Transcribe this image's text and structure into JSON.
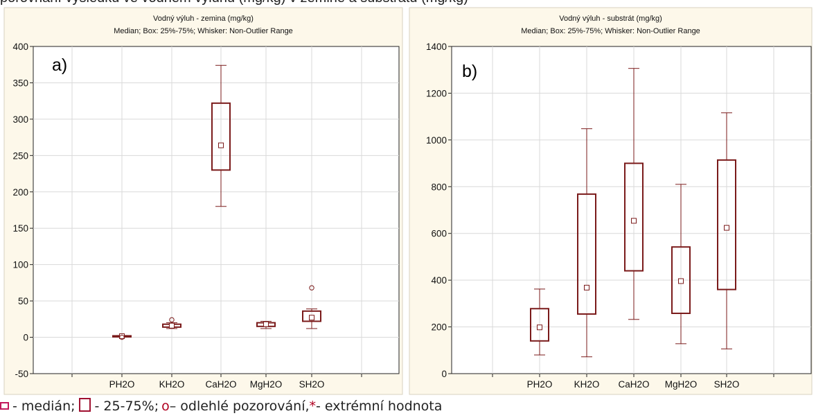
{
  "top_caption": "porovnání výsledků ve vodném výluhu (mg/kg) v zemině a substrátu (mg/kg)",
  "colors": {
    "panel_background": "#fdf8ea",
    "plot_background": "#ffffff",
    "box_stroke": "#7a1a1a",
    "grid": "#d9d9d9"
  },
  "chart_data": [
    {
      "type": "boxplot",
      "panel_label": "a)",
      "title": "Vodný výluh - zemina (mg/kg)",
      "subtitle": "Median; Box: 25%-75%; Whisker: Non-Outlier Range",
      "categories": [
        "PH2O",
        "KH2O",
        "CaH2O",
        "MgH2O",
        "SH2O"
      ],
      "ylim": [
        -50,
        400
      ],
      "yticks": [
        -50,
        0,
        50,
        100,
        150,
        200,
        250,
        300,
        350,
        400
      ],
      "grid": true,
      "boxes": [
        {
          "category": "PH2O",
          "whisker_low": 0.5,
          "q1": 1,
          "median": 1.5,
          "q3": 2,
          "whisker_high": 2.5,
          "outliers": [
            0
          ]
        },
        {
          "category": "KH2O",
          "whisker_low": 12,
          "q1": 14,
          "median": 16,
          "q3": 18,
          "whisker_high": 20,
          "outliers": [
            24
          ]
        },
        {
          "category": "CaH2O",
          "whisker_low": 180,
          "q1": 230,
          "median": 264,
          "q3": 322,
          "whisker_high": 374,
          "outliers": []
        },
        {
          "category": "MgH2O",
          "whisker_low": 12,
          "q1": 15,
          "median": 18,
          "q3": 20,
          "whisker_high": 22,
          "outliers": []
        },
        {
          "category": "SH2O",
          "whisker_low": 12,
          "q1": 22,
          "median": 27,
          "q3": 36,
          "whisker_high": 39,
          "outliers": [
            68
          ]
        }
      ]
    },
    {
      "type": "boxplot",
      "panel_label": "b)",
      "title": "Vodný výluh - substrát (mg/kg)",
      "subtitle": "Median; Box: 25%-75%; Whisker: Non-Outlier Range",
      "categories": [
        "PH2O",
        "KH2O",
        "CaH2O",
        "MgH2O",
        "SH2O"
      ],
      "ylim": [
        0,
        1400
      ],
      "yticks": [
        0,
        200,
        400,
        600,
        800,
        1000,
        1200,
        1400
      ],
      "grid": true,
      "boxes": [
        {
          "category": "PH2O",
          "whisker_low": 80,
          "q1": 140,
          "median": 198,
          "q3": 278,
          "whisker_high": 362,
          "outliers": []
        },
        {
          "category": "KH2O",
          "whisker_low": 72,
          "q1": 255,
          "median": 368,
          "q3": 768,
          "whisker_high": 1048,
          "outliers": []
        },
        {
          "category": "CaH2O",
          "whisker_low": 232,
          "q1": 440,
          "median": 654,
          "q3": 900,
          "whisker_high": 1306,
          "outliers": []
        },
        {
          "category": "MgH2O",
          "whisker_low": 128,
          "q1": 258,
          "median": 396,
          "q3": 542,
          "whisker_high": 810,
          "outliers": []
        },
        {
          "category": "SH2O",
          "whisker_low": 106,
          "q1": 360,
          "median": 624,
          "q3": 914,
          "whisker_high": 1116,
          "outliers": []
        }
      ]
    }
  ],
  "legend": {
    "median_text": " - medián; ",
    "box_text": " - 25-75%; ",
    "outlier_symbol": "o",
    "outlier_text": " – odlehlé pozorování, ",
    "extreme_symbol": "*",
    "extreme_text": " - extrémní hodnota"
  }
}
